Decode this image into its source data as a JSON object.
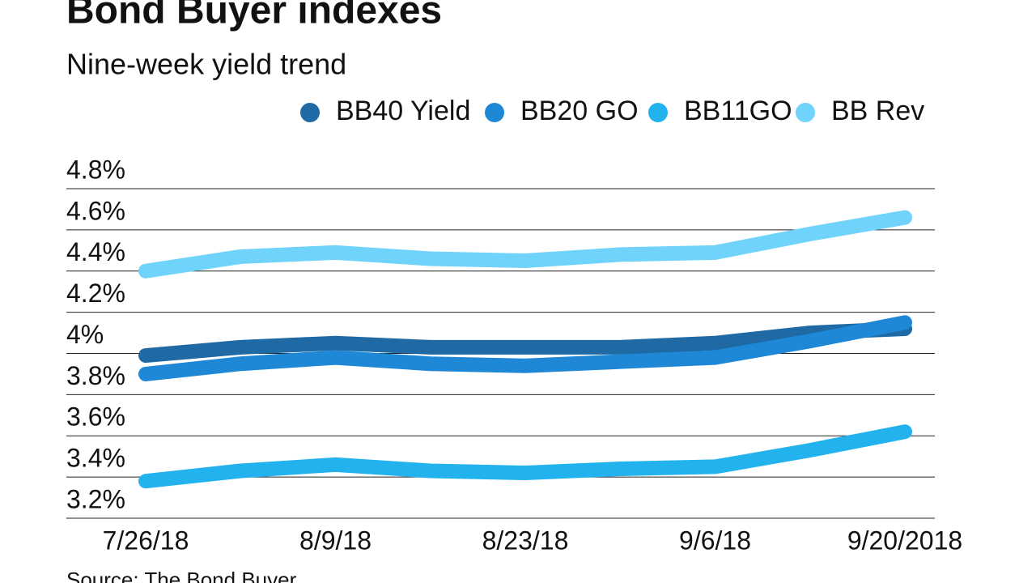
{
  "chart_data": {
    "type": "line",
    "title": "Bond Buyer indexes",
    "subtitle": "Nine-week yield trend",
    "source": "Source: The Bond Buyer",
    "categories": [
      "7/26/18",
      null,
      "8/9/18",
      null,
      "8/23/18",
      null,
      "9/6/18",
      null,
      "9/20/2018"
    ],
    "series": [
      {
        "name": "BB40 Yield",
        "color": "#1f6aa5",
        "values": [
          3.99,
          4.03,
          4.05,
          4.03,
          4.03,
          4.03,
          4.05,
          4.1,
          4.12
        ]
      },
      {
        "name": "BB20 GO",
        "color": "#1e88d6",
        "values": [
          3.9,
          3.95,
          3.98,
          3.95,
          3.94,
          3.96,
          3.98,
          4.06,
          4.15
        ]
      },
      {
        "name": "BB11GO",
        "color": "#22b3ef",
        "values": [
          3.38,
          3.43,
          3.46,
          3.43,
          3.42,
          3.44,
          3.45,
          3.53,
          3.62
        ]
      },
      {
        "name": "BB Rev",
        "color": "#6fd3fb",
        "values": [
          4.4,
          4.47,
          4.49,
          4.46,
          4.45,
          4.48,
          4.49,
          4.58,
          4.66
        ]
      }
    ],
    "ylim": [
      3.2,
      4.8
    ],
    "yticks": [
      {
        "value": 3.2,
        "label": "3.2%"
      },
      {
        "value": 3.4,
        "label": "3.4%"
      },
      {
        "value": 3.6,
        "label": "3.6%"
      },
      {
        "value": 3.8,
        "label": "3.8%"
      },
      {
        "value": 4.0,
        "label": "4%"
      },
      {
        "value": 4.2,
        "label": "4.2%"
      },
      {
        "value": 4.4,
        "label": "4.4%"
      },
      {
        "value": 4.6,
        "label": "4.6%"
      },
      {
        "value": 4.8,
        "label": "4.8%"
      }
    ],
    "grid": true
  }
}
